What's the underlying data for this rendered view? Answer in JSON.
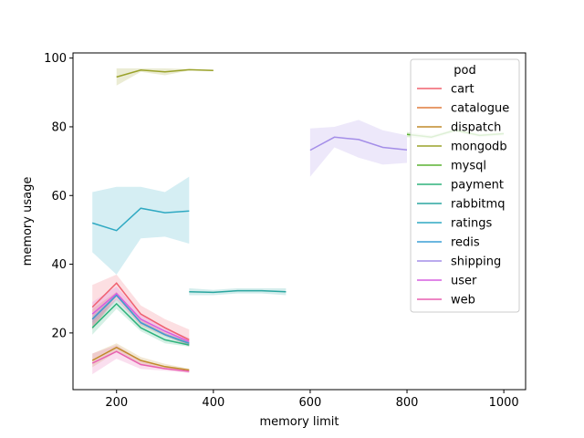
{
  "chart_data": {
    "type": "line",
    "xlabel": "memory limit",
    "ylabel": "memory usage",
    "xlim": [
      110,
      1045
    ],
    "ylim": [
      3.5,
      101.5
    ],
    "x_ticks": [
      200,
      400,
      600,
      800,
      1000
    ],
    "y_ticks": [
      20,
      40,
      60,
      80,
      100
    ],
    "grid": false,
    "legend": {
      "title": "pod",
      "placement": "top-right"
    },
    "series": [
      {
        "name": "cart",
        "color": "#f0606f",
        "x": [
          150,
          200,
          250,
          300,
          350
        ],
        "values": [
          27.5,
          34.5,
          25.5,
          21.5,
          18.0
        ],
        "lower": [
          21.0,
          31.0,
          23.5,
          19.5,
          16.0
        ],
        "upper": [
          34.0,
          37.0,
          28.0,
          24.0,
          21.0
        ]
      },
      {
        "name": "catalogue",
        "color": "#e07b3c",
        "x": [
          150,
          200,
          250,
          300,
          350
        ],
        "values": [
          24.0,
          31.0,
          23.0,
          19.5,
          17.0
        ],
        "lower": [
          21.0,
          30.0,
          22.0,
          19.0,
          16.5
        ],
        "upper": [
          27.0,
          32.0,
          24.0,
          20.0,
          17.5
        ]
      },
      {
        "name": "dispatch",
        "color": "#c08a2a",
        "x": [
          150,
          200,
          250,
          300,
          350
        ],
        "values": [
          12.0,
          15.8,
          12.0,
          10.2,
          9.2
        ],
        "lower": [
          10.0,
          14.5,
          11.0,
          9.5,
          8.8
        ],
        "upper": [
          14.0,
          17.0,
          13.0,
          11.0,
          9.6
        ]
      },
      {
        "name": "mongodb",
        "color": "#9aa22a",
        "x": [
          200,
          250,
          300,
          350,
          400
        ],
        "values": [
          94.5,
          96.5,
          96.0,
          96.6,
          96.4
        ],
        "lower": [
          92.0,
          96.0,
          95.0,
          96.4,
          96.3
        ],
        "upper": [
          97.0,
          97.0,
          97.0,
          96.8,
          96.6
        ]
      },
      {
        "name": "mysql",
        "color": "#5ab232",
        "x": [
          800,
          850,
          900,
          950,
          1000
        ],
        "values": [
          77.8,
          77.0,
          79.0,
          77.5,
          78.0
        ],
        "lower": [
          77.0,
          76.5,
          78.5,
          77.0,
          77.5
        ],
        "upper": [
          78.5,
          77.5,
          79.5,
          78.0,
          78.5
        ]
      },
      {
        "name": "payment",
        "color": "#2fb27c",
        "x": [
          150,
          200,
          250,
          300,
          350
        ],
        "values": [
          21.5,
          28.5,
          21.5,
          18.0,
          16.5
        ],
        "lower": [
          19.5,
          27.0,
          20.5,
          17.0,
          16.0
        ],
        "upper": [
          23.5,
          30.0,
          22.5,
          19.0,
          17.0
        ]
      },
      {
        "name": "rabbitmq",
        "color": "#2aa6a0",
        "x": [
          350,
          400,
          450,
          500,
          550
        ],
        "values": [
          32.0,
          31.8,
          32.3,
          32.3,
          32.0
        ],
        "lower": [
          31.0,
          31.0,
          31.5,
          31.5,
          31.0
        ],
        "upper": [
          33.0,
          32.5,
          33.0,
          33.0,
          33.0
        ]
      },
      {
        "name": "ratings",
        "color": "#2fa9c2",
        "x": [
          150,
          200,
          250,
          300,
          350
        ],
        "values": [
          52.0,
          49.8,
          56.3,
          55.0,
          55.5
        ],
        "lower": [
          43.5,
          37.0,
          47.5,
          48.0,
          46.0
        ],
        "upper": [
          61.0,
          62.5,
          62.5,
          61.0,
          65.5
        ]
      },
      {
        "name": "redis",
        "color": "#3a9fd6",
        "x": [
          150,
          200,
          250,
          300,
          350
        ],
        "values": [
          24.0,
          31.0,
          23.0,
          19.5,
          17.0
        ],
        "lower": [
          23.0,
          30.5,
          22.5,
          19.0,
          16.5
        ],
        "upper": [
          25.0,
          31.5,
          23.5,
          20.0,
          17.5
        ]
      },
      {
        "name": "shipping",
        "color": "#a48ee8",
        "x": [
          600,
          650,
          700,
          750,
          800
        ],
        "values": [
          73.2,
          77.0,
          76.3,
          74.0,
          73.3
        ],
        "lower": [
          65.5,
          74.0,
          71.0,
          69.0,
          69.5
        ],
        "upper": [
          79.5,
          80.0,
          82.0,
          79.0,
          77.5
        ]
      },
      {
        "name": "user",
        "color": "#d65ee0",
        "x": [
          150,
          200,
          250,
          300,
          350
        ],
        "values": [
          25.5,
          31.5,
          24.0,
          20.5,
          17.5
        ],
        "lower": [
          22.0,
          29.5,
          22.5,
          19.5,
          16.5
        ],
        "upper": [
          29.0,
          33.5,
          25.5,
          21.5,
          18.5
        ]
      },
      {
        "name": "web",
        "color": "#e85fb0",
        "x": [
          150,
          200,
          250,
          300,
          350
        ],
        "values": [
          11.2,
          14.6,
          10.8,
          9.6,
          8.8
        ],
        "lower": [
          8.0,
          12.5,
          9.5,
          9.0,
          8.3
        ],
        "upper": [
          14.0,
          16.5,
          12.0,
          10.2,
          9.3
        ]
      }
    ]
  }
}
